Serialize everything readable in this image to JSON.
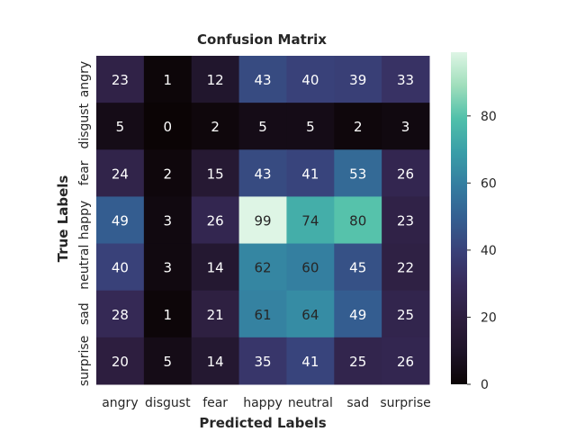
{
  "chart_data": {
    "type": "heatmap",
    "title": "Confusion Matrix",
    "xlabel": "Predicted Labels",
    "ylabel": "True Labels",
    "x_categories": [
      "angry",
      "disgust",
      "fear",
      "happy",
      "neutral",
      "sad",
      "surprise"
    ],
    "y_categories": [
      "angry",
      "disgust",
      "fear",
      "happy",
      "neutral",
      "sad",
      "surprise"
    ],
    "values": [
      [
        23,
        1,
        12,
        43,
        40,
        39,
        33
      ],
      [
        5,
        0,
        2,
        5,
        5,
        2,
        3
      ],
      [
        24,
        2,
        15,
        43,
        41,
        53,
        26
      ],
      [
        49,
        3,
        26,
        99,
        74,
        80,
        23
      ],
      [
        40,
        3,
        14,
        62,
        60,
        45,
        22
      ],
      [
        28,
        1,
        21,
        61,
        64,
        49,
        25
      ],
      [
        20,
        5,
        14,
        35,
        41,
        25,
        26
      ]
    ],
    "colorbar": {
      "min": 0,
      "max": 99,
      "ticks": [
        0,
        20,
        40,
        60,
        80
      ]
    },
    "colormap": "mako",
    "annotate": true,
    "grid": false
  }
}
